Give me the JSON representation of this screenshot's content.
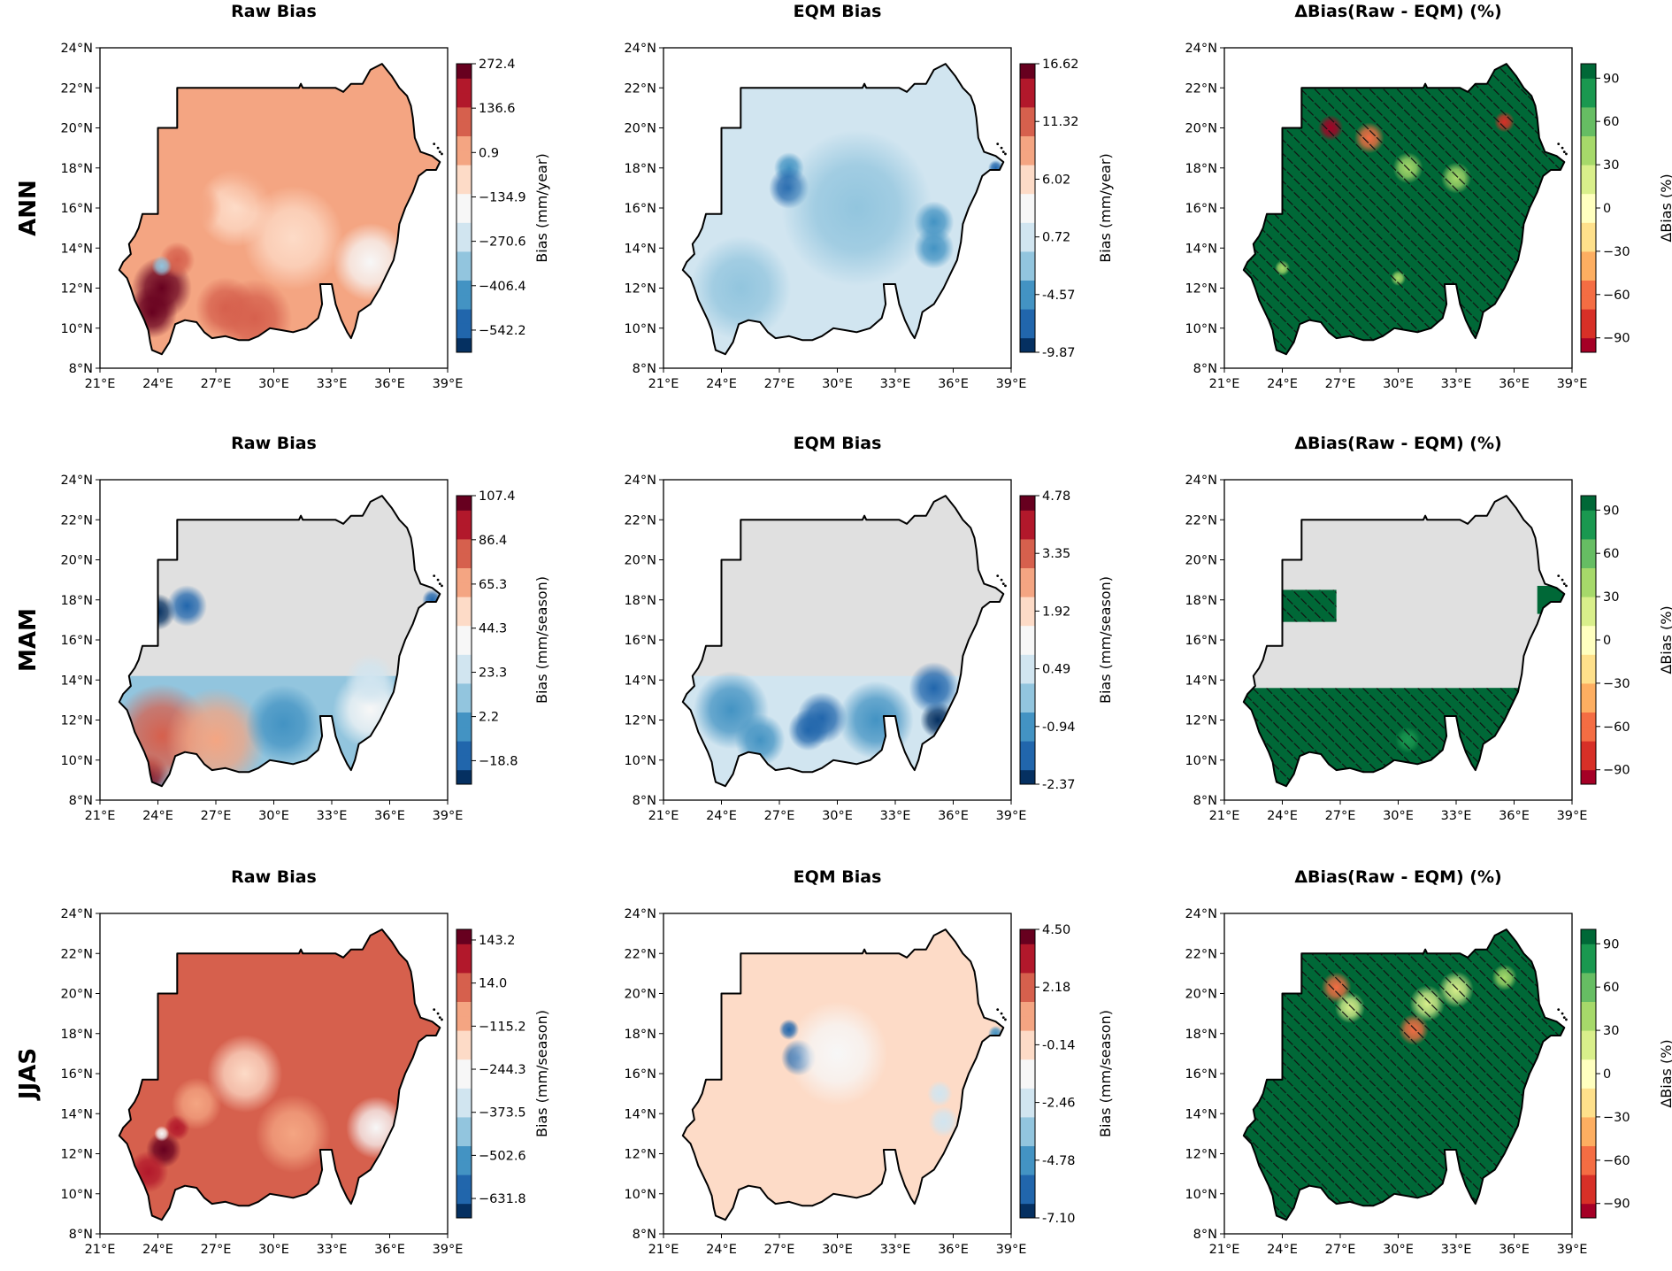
{
  "chart_data": {
    "type": "heatmap",
    "layout": "3x3 grid of maps (rows = season, columns = bias type)",
    "rows": [
      "ANN",
      "MAM",
      "JJAS"
    ],
    "columns": [
      "Raw Bias",
      "EQM Bias",
      "ΔBias(Raw - EQM) (%)"
    ],
    "x_ticks": [
      "21°E",
      "24°E",
      "27°E",
      "30°E",
      "33°E",
      "36°E",
      "39°E"
    ],
    "y_ticks": [
      "8°N",
      "10°N",
      "12°N",
      "14°N",
      "16°N",
      "18°N",
      "20°N",
      "22°N",
      "24°N"
    ],
    "xlim": [
      21,
      39
    ],
    "ylim": [
      8,
      24
    ],
    "panels": [
      {
        "row": "ANN",
        "title": "Raw Bias",
        "kind": "diverging",
        "colorbar_label": "Bias (mm/year)",
        "cbar_range": [
          -610,
          272.4
        ],
        "cbar_ticks": [
          "272.4",
          "136.6",
          "0.9",
          "−134.9",
          "−270.6",
          "−406.4",
          "−542.2"
        ],
        "cbar_tick_values": [
          272.4,
          136.6,
          0.9,
          -134.9,
          -270.6,
          -406.4,
          -542.2
        ],
        "pattern": "positive (red) bias in southwest ~24°E 12°N, weak negative bias in east ~35°E 13°N",
        "hatched": false
      },
      {
        "row": "ANN",
        "title": "EQM Bias",
        "kind": "diverging",
        "colorbar_label": "Bias (mm/year)",
        "cbar_range": [
          -9.87,
          16.62
        ],
        "cbar_ticks": [
          "16.62",
          "11.32",
          "6.02",
          "0.72",
          "-4.57",
          "-9.87"
        ],
        "cbar_tick_values": [
          16.62,
          11.32,
          6.02,
          0.72,
          -4.57,
          -9.87
        ],
        "pattern": "near-zero bias, slight negative patches",
        "hatched": false
      },
      {
        "row": "ANN",
        "title": "ΔBias(Raw - EQM) (%)",
        "kind": "green",
        "colorbar_label": "ΔBias (%)",
        "cbar_range": [
          -100,
          100
        ],
        "cbar_ticks": [
          "90",
          "60",
          "30",
          "0",
          "−30",
          "−60",
          "−90"
        ],
        "cbar_tick_values": [
          90,
          60,
          30,
          0,
          -30,
          -60,
          -90
        ],
        "pattern": "mostly >90% reduction, hatched almost everywhere",
        "hatched": true,
        "hatch_coverage": "full"
      },
      {
        "row": "MAM",
        "title": "Raw Bias",
        "kind": "diverging_gray",
        "colorbar_label": "Bias (mm/season)",
        "cbar_range": [
          -30,
          107.4
        ],
        "cbar_ticks": [
          "107.4",
          "86.4",
          "65.3",
          "44.3",
          "23.3",
          "2.2",
          "−18.8"
        ],
        "cbar_tick_values": [
          107.4,
          86.4,
          65.3,
          44.3,
          23.3,
          2.2,
          -18.8
        ],
        "pattern": "north masked gray, positive bias in south increasing southwestward",
        "hatched": false
      },
      {
        "row": "MAM",
        "title": "EQM Bias",
        "kind": "diverging_gray",
        "colorbar_label": "Bias (mm/season)",
        "cbar_range": [
          -2.37,
          4.78
        ],
        "cbar_ticks": [
          "4.78",
          "3.35",
          "1.92",
          "0.49",
          "-0.94",
          "-2.37"
        ],
        "cbar_tick_values": [
          4.78,
          3.35,
          1.92,
          0.49,
          -0.94,
          -2.37
        ],
        "pattern": "north masked gray, negative bias patches in south",
        "hatched": false
      },
      {
        "row": "MAM",
        "title": "ΔBias(Raw - EQM) (%)",
        "kind": "green_gray",
        "colorbar_label": "ΔBias (%)",
        "cbar_range": [
          -100,
          100
        ],
        "cbar_ticks": [
          "90",
          "60",
          "30",
          "0",
          "−30",
          "−60",
          "−90"
        ],
        "cbar_tick_values": [
          90,
          60,
          30,
          0,
          -30,
          -60,
          -90
        ],
        "pattern": "south hatched green >90%, north masked gray",
        "hatched": true,
        "hatch_coverage": "south"
      },
      {
        "row": "JJAS",
        "title": "Raw Bias",
        "kind": "diverging",
        "colorbar_label": "Bias (mm/season)",
        "cbar_range": [
          -690,
          175
        ],
        "cbar_ticks": [
          "143.2",
          "14.0",
          "−115.2",
          "−244.3",
          "−373.5",
          "−502.6",
          "−631.8"
        ],
        "cbar_tick_values": [
          143.2,
          14.0,
          -115.2,
          -244.3,
          -373.5,
          -502.6,
          -631.8
        ],
        "pattern": "positive bias southwest, negative bias east",
        "hatched": false
      },
      {
        "row": "JJAS",
        "title": "EQM Bias",
        "kind": "diverging",
        "colorbar_label": "Bias (mm/season)",
        "cbar_range": [
          -7.1,
          4.5
        ],
        "cbar_ticks": [
          "4.50",
          "2.18",
          "-0.14",
          "-2.46",
          "-4.78",
          "-7.10"
        ],
        "cbar_tick_values": [
          4.5,
          2.18,
          -0.14,
          -2.46,
          -4.78,
          -7.1
        ],
        "pattern": "near-zero bias, negative patch near 27.5°E 17.5°N",
        "hatched": false
      },
      {
        "row": "JJAS",
        "title": "ΔBias(Raw - EQM) (%)",
        "kind": "green",
        "colorbar_label": "ΔBias (%)",
        "cbar_range": [
          -100,
          100
        ],
        "cbar_ticks": [
          "90",
          "60",
          "30",
          "0",
          "−30",
          "−60",
          "−90"
        ],
        "cbar_tick_values": [
          90,
          60,
          30,
          0,
          -30,
          -60,
          -90
        ],
        "pattern": "mostly >90% reduction, hatched nearly everywhere",
        "hatched": true,
        "hatch_coverage": "full"
      }
    ]
  },
  "colors": {
    "outline": "#000000",
    "masked_gray": "#e0e0e0",
    "rdbu": [
      "#053061",
      "#2166ac",
      "#4393c3",
      "#92c5de",
      "#d1e5f0",
      "#f7f7f7",
      "#fddbc7",
      "#f4a582",
      "#d6604d",
      "#b2182b",
      "#67001f"
    ],
    "rdylgn": [
      "#a50026",
      "#d73027",
      "#f46d43",
      "#fdae61",
      "#fee08b",
      "#ffffbf",
      "#d9ef8b",
      "#a6d96a",
      "#66bd63",
      "#1a9850",
      "#006837"
    ]
  }
}
